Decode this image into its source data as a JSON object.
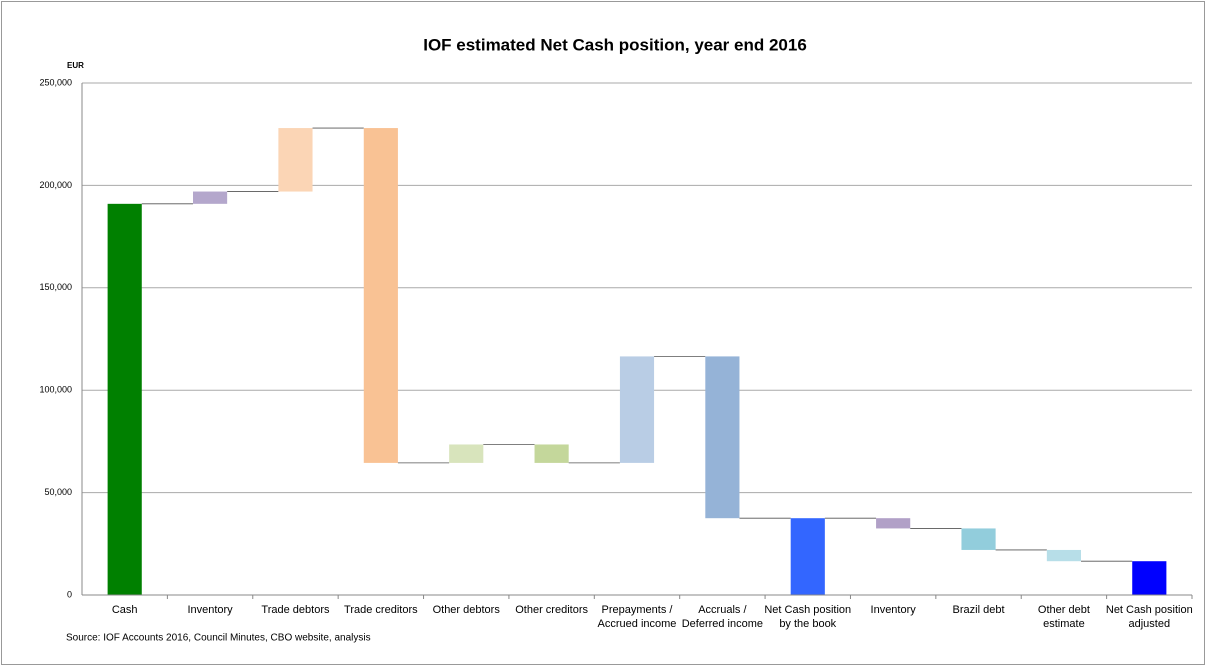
{
  "chart_data": {
    "type": "waterfall",
    "title": "IOF estimated Net Cash position, year end 2016",
    "y_axis_label": "EUR",
    "source": "Source: IOF Accounts 2016, Council Minutes, CBO website, analysis",
    "categories": [
      "Cash",
      "Inventory",
      "Trade debtors",
      "Trade creditors",
      "Other debtors",
      "Other creditors",
      "Prepayments / Accrued income",
      "Accruals / Deferred income",
      "Net Cash position by the book",
      "Inventory",
      "Brazil debt",
      "Other debt estimate",
      "Net Cash position adjusted"
    ],
    "values": [
      191000,
      6000,
      31000,
      -163500,
      9000,
      -9000,
      52000,
      -79000,
      37500,
      -5000,
      -10500,
      -5500,
      16500
    ],
    "total": [
      true,
      false,
      false,
      false,
      false,
      false,
      false,
      false,
      true,
      false,
      false,
      false,
      true
    ],
    "colors": [
      "#008000",
      "#b4a7cc",
      "#fbd5b5",
      "#f9c294",
      "#d8e4bc",
      "#c4d79b",
      "#b9cde5",
      "#95b3d7",
      "#3366ff",
      "#b1a0c7",
      "#92cddc",
      "#b7dee8",
      "#0000ff"
    ],
    "ylim": [
      0,
      250000
    ],
    "yticks": [
      0,
      {
        "value": 50000,
        "label": "50,000"
      },
      {
        "value": 100000,
        "label": "100,000"
      },
      {
        "value": 150000,
        "label": "150,000"
      },
      {
        "value": 200000,
        "label": "200,000"
      },
      {
        "value": 250000,
        "label": "250,000"
      }
    ],
    "grid": true
  }
}
